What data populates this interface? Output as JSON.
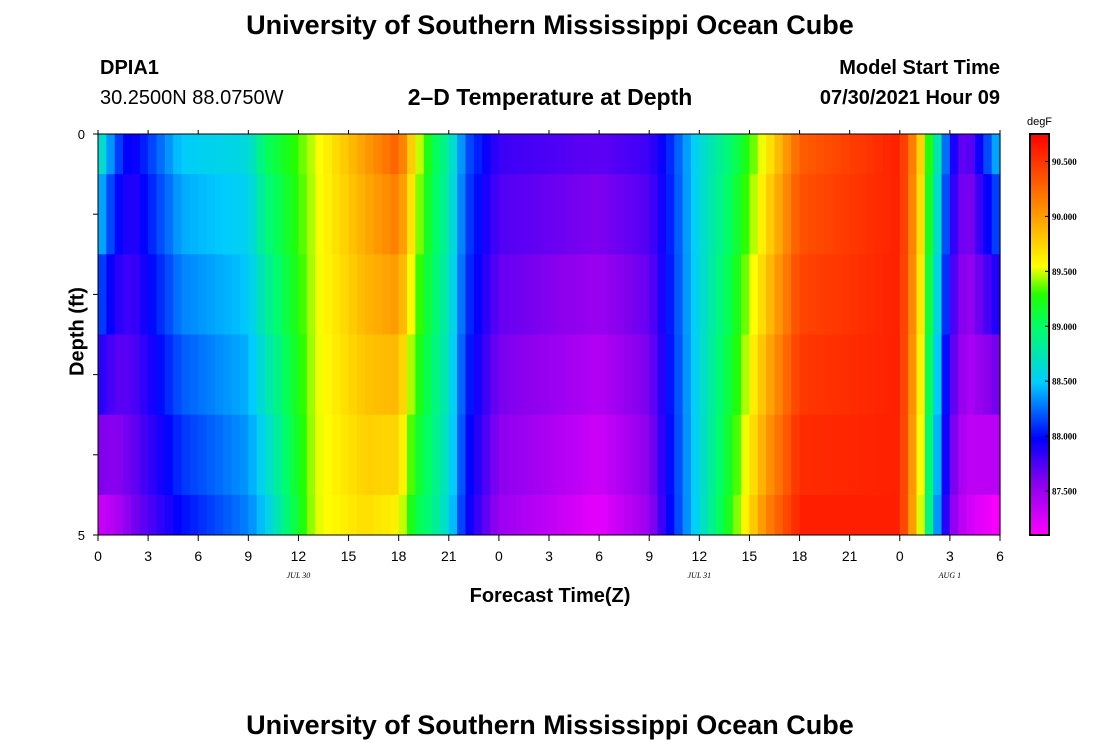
{
  "header": {
    "title": "University of Southern Mississippi Ocean Cube",
    "station": "DPIA1",
    "coords": "30.2500N  88.0750W",
    "chart_title": "2–D Temperature at Depth",
    "model_label": "Model Start Time",
    "model_time": "07/30/2021 Hour 09"
  },
  "footer": {
    "title": "University of Southern Mississippi Ocean Cube"
  },
  "chart_data": {
    "type": "heatmap",
    "title": "2–D Temperature at Depth",
    "xlabel": "Forecast Time(Z)",
    "ylabel": "Depth (ft)",
    "x_ticks": [
      "0",
      "3",
      "6",
      "9",
      "12",
      "15",
      "18",
      "21",
      "0",
      "3",
      "6",
      "9",
      "12",
      "15",
      "18",
      "21",
      "0",
      "3",
      "6"
    ],
    "date_labels": [
      {
        "label": "JUL  30",
        "at_hour": 12
      },
      {
        "label": "JUL  31",
        "at_hour": 36
      },
      {
        "label": "AUG  1",
        "at_hour": 51
      }
    ],
    "y_ticks": [
      "0",
      "5"
    ],
    "ylim": [
      0,
      5
    ],
    "hours_span": [
      0,
      54
    ],
    "depth_bands": [
      [
        0,
        0.5
      ],
      [
        0.5,
        1.5
      ],
      [
        1.5,
        2.5
      ],
      [
        2.5,
        3.5
      ],
      [
        3.5,
        4.5
      ],
      [
        4.5,
        5
      ]
    ],
    "colorbar": {
      "unit": "degF",
      "ticks": [
        "90.500",
        "90.000",
        "89.500",
        "89.000",
        "88.500",
        "88.000",
        "87.500"
      ],
      "range": [
        87.1,
        90.75
      ]
    },
    "key_points": {
      "hours": [
        0,
        1,
        2,
        5,
        9,
        10,
        13,
        16,
        18,
        19,
        20,
        21,
        22,
        24,
        30,
        33,
        34,
        36,
        38,
        40,
        42,
        48,
        49,
        50,
        51,
        52,
        54
      ],
      "surface": [
        88.8,
        88.2,
        87.9,
        88.5,
        88.6,
        89.0,
        89.5,
        90.0,
        90.3,
        89.6,
        89.1,
        88.8,
        88.2,
        87.8,
        87.7,
        87.8,
        88.0,
        88.6,
        89.0,
        89.6,
        90.3,
        90.6,
        90.0,
        89.0,
        88.0,
        87.6,
        88.5
      ],
      "bottom": [
        87.3,
        87.4,
        87.6,
        88.0,
        88.3,
        88.5,
        89.5,
        89.7,
        89.6,
        89.1,
        88.9,
        88.6,
        88.0,
        87.5,
        87.2,
        87.5,
        87.9,
        88.6,
        89.3,
        90.1,
        90.6,
        90.6,
        89.8,
        88.6,
        87.6,
        87.3,
        87.1
      ]
    }
  }
}
